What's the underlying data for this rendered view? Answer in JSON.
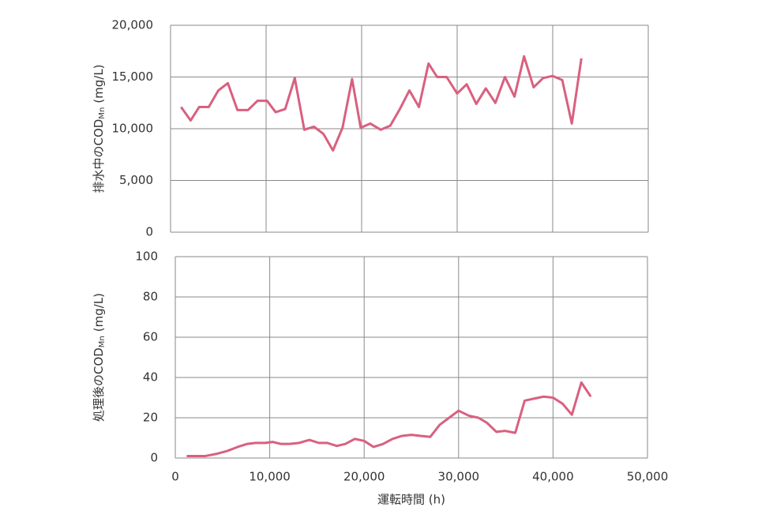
{
  "chart_data": [
    {
      "type": "line",
      "y_label": "排水中のCOD",
      "y_label_subscript": "Mn",
      "y_label_unit": "(mg/L)",
      "xlim": [
        0,
        50000
      ],
      "xticks": [
        0,
        10000,
        20000,
        30000,
        40000,
        50000
      ],
      "x_tick_labels": false,
      "ylim": [
        0,
        20000
      ],
      "yticks": [
        0,
        {
          "value": 5000,
          "label": "5,000"
        },
        {
          "value": 10000,
          "label": "10,000"
        },
        {
          "value": 15000,
          "label": "15,000"
        },
        {
          "value": 20000,
          "label": "20,000"
        }
      ],
      "grid": true,
      "x": [
        1100,
        2100,
        3000,
        4000,
        5000,
        6000,
        7000,
        8100,
        9100,
        10100,
        11000,
        12000,
        13000,
        14000,
        15000,
        16000,
        17000,
        18000,
        19000,
        19900,
        20900,
        22000,
        23000,
        24000,
        25000,
        26000,
        27000,
        27900,
        28900,
        30000,
        31000,
        32000,
        33000,
        34000,
        35000,
        36000,
        37000,
        38000,
        39000,
        40000,
        41000,
        42000,
        43000
      ],
      "series": [
        {
          "color": "#d9607f",
          "values": [
            12100,
            10800,
            12100,
            12100,
            13700,
            14400,
            11800,
            11800,
            12700,
            12700,
            11600,
            11900,
            14900,
            9900,
            10200,
            9500,
            7900,
            10100,
            14800,
            10100,
            10500,
            9900,
            10300,
            11900,
            13700,
            12100,
            16300,
            15000,
            15000,
            13400,
            14300,
            12400,
            13900,
            12500,
            15000,
            13100,
            17000,
            14000,
            14900,
            15100,
            14700,
            10500,
            16800
          ]
        }
      ]
    },
    {
      "type": "line",
      "y_label": "処理後のCOD",
      "y_label_subscript": "Mn",
      "y_label_unit": "(mg/L)",
      "x_label": "運転時間 (h)",
      "xlim": [
        0,
        50000
      ],
      "xticks": [
        0,
        {
          "value": 10000,
          "label": "10,000"
        },
        {
          "value": 20000,
          "label": "20,000"
        },
        {
          "value": 30000,
          "label": "30,000"
        },
        {
          "value": 40000,
          "label": "40,000"
        },
        {
          "value": 50000,
          "label": "50,000"
        }
      ],
      "x_tick_labels": true,
      "ylim": [
        0,
        100
      ],
      "yticks": [
        0,
        20,
        40,
        60,
        80,
        100
      ],
      "grid": true,
      "x": [
        1200,
        2200,
        3200,
        4300,
        5500,
        6600,
        7600,
        8500,
        9500,
        10300,
        11200,
        12100,
        13100,
        14200,
        15200,
        16100,
        17100,
        18000,
        19000,
        20000,
        21000,
        22000,
        23000,
        24000,
        25000,
        26000,
        27000,
        28000,
        29000,
        30000,
        31100,
        32100,
        33000,
        34000,
        34900,
        36000,
        37000,
        38000,
        39000,
        40000,
        41000,
        42000,
        43000,
        44000
      ],
      "series": [
        {
          "color": "#d9607f",
          "values": [
            1,
            1,
            1,
            2,
            3.5,
            5.5,
            7,
            7.5,
            7.5,
            8,
            7,
            7,
            7.5,
            9,
            7.5,
            7.5,
            6,
            7,
            9.5,
            8.5,
            5.5,
            7,
            9.5,
            11,
            11.5,
            11,
            10.5,
            16.5,
            20,
            23.5,
            21,
            20,
            17.5,
            13,
            13.5,
            12.5,
            28.5,
            29.5,
            30.5,
            30,
            27,
            21.5,
            37.5,
            30.5
          ]
        }
      ]
    }
  ]
}
